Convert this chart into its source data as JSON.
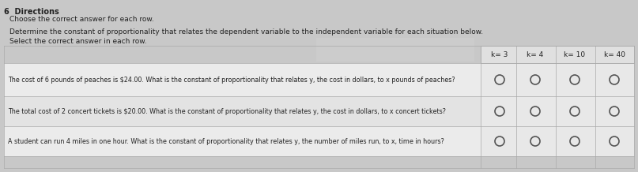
{
  "title_number": "6",
  "title": "Directions",
  "subtitle1": "Choose the correct answer for each row.",
  "subtitle2": "Determine the constant of proportionality that relates the dependent variable to the independent variable for each situation below.",
  "subtitle3": "Select the correct answer in each row.",
  "col_headers": [
    "k= 3",
    "k= 4",
    "k= 10",
    "k= 40"
  ],
  "rows": [
    "The cost of 6 pounds of peaches is $24.00. What is the constant of proportionality that relates y, the cost in dollars, to x pounds of peaches?",
    "The total cost of 2 concert tickets is $20.00. What is the constant of proportionality that relates y, the cost in dollars, to x concert tickets?",
    "A student can run 4 miles in one hour. What is the constant of proportionality that relates y, the number of miles run, to x, time in hours?"
  ],
  "bg_color": "#e8e8e8",
  "table_bg": "#f0f0f0",
  "header_bg": "#d8d8d8",
  "text_color": "#222222",
  "circle_color": "#555555",
  "fig_bg": "#c8c8c8"
}
